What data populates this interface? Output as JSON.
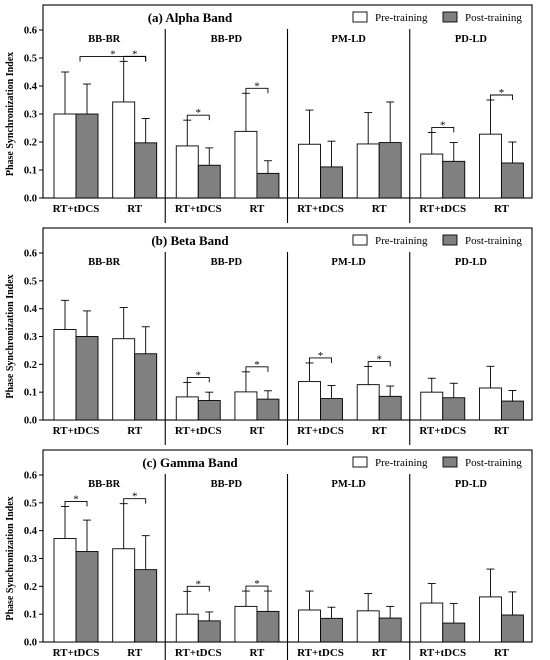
{
  "colors": {
    "pre": "#ffffff",
    "post": "#808080",
    "axis": "#000000"
  },
  "chart_data": [
    {
      "type": "bar",
      "title": "(a) Alpha Band",
      "ylabel": "Phase Synchronization Index",
      "ylim": [
        0,
        0.6
      ],
      "yticks": [
        "0.0",
        "0.1",
        "0.2",
        "0.3",
        "0.4",
        "0.5",
        "0.6"
      ],
      "legend": [
        "Pre-training",
        "Post-training"
      ],
      "legend_position": "top-right",
      "groups": [
        {
          "name": "BB-BR",
          "categories": [
            "RT+tDCS",
            "RT"
          ],
          "pre": [
            0.3,
            0.343
          ],
          "pre_err": [
            0.15,
            0.145
          ],
          "post": [
            0.3,
            0.197
          ],
          "post_err": [
            0.107,
            0.087
          ],
          "sig": [
            {
              "cat": 1,
              "from": "pre",
              "to": "post",
              "label": "*"
            },
            {
              "cat": "0-1",
              "label": "*"
            }
          ]
        },
        {
          "name": "BB-PD",
          "categories": [
            "RT+tDCS",
            "RT"
          ],
          "pre": [
            0.186,
            0.238
          ],
          "pre_err": [
            0.092,
            0.136
          ],
          "post": [
            0.117,
            0.088
          ],
          "post_err": [
            0.062,
            0.045
          ],
          "sig": [
            {
              "cat": 0,
              "from": "pre",
              "to": "post",
              "label": "*"
            },
            {
              "cat": 1,
              "from": "pre",
              "to": "post",
              "label": "*"
            }
          ]
        },
        {
          "name": "PM-LD",
          "categories": [
            "RT+tDCS",
            "RT"
          ],
          "pre": [
            0.192,
            0.193
          ],
          "pre_err": [
            0.122,
            0.112
          ],
          "post": [
            0.111,
            0.198
          ],
          "post_err": [
            0.092,
            0.145
          ],
          "sig": []
        },
        {
          "name": "PD-LD",
          "categories": [
            "RT+tDCS",
            "RT"
          ],
          "pre": [
            0.157,
            0.228
          ],
          "pre_err": [
            0.077,
            0.122
          ],
          "post": [
            0.131,
            0.125
          ],
          "post_err": [
            0.067,
            0.075
          ],
          "sig": [
            {
              "cat": 0,
              "from": "pre",
              "to": "post",
              "label": "*"
            },
            {
              "cat": 1,
              "from": "pre",
              "to": "post",
              "label": "*"
            }
          ]
        }
      ]
    },
    {
      "type": "bar",
      "title": "(b) Beta Band",
      "ylabel": "Phase Synchronization Index",
      "ylim": [
        0,
        0.6
      ],
      "yticks": [
        "0.0",
        "0.1",
        "0.2",
        "0.3",
        "0.4",
        "0.5",
        "0.6"
      ],
      "legend": [
        "Pre-training",
        "Post-training"
      ],
      "legend_position": "top-right",
      "groups": [
        {
          "name": "BB-BR",
          "categories": [
            "RT+tDCS",
            "RT"
          ],
          "pre": [
            0.325,
            0.292
          ],
          "pre_err": [
            0.105,
            0.112
          ],
          "post": [
            0.3,
            0.238
          ],
          "post_err": [
            0.092,
            0.097
          ],
          "sig": []
        },
        {
          "name": "BB-PD",
          "categories": [
            "RT+tDCS",
            "RT"
          ],
          "pre": [
            0.083,
            0.101
          ],
          "pre_err": [
            0.052,
            0.072
          ],
          "post": [
            0.07,
            0.075
          ],
          "post_err": [
            0.03,
            0.03
          ],
          "sig": [
            {
              "cat": 0,
              "from": "pre",
              "to": "post",
              "label": "*"
            },
            {
              "cat": 1,
              "from": "pre",
              "to": "post",
              "label": "*"
            }
          ]
        },
        {
          "name": "PM-LD",
          "categories": [
            "RT+tDCS",
            "RT"
          ],
          "pre": [
            0.138,
            0.127
          ],
          "pre_err": [
            0.067,
            0.065
          ],
          "post": [
            0.077,
            0.085
          ],
          "post_err": [
            0.047,
            0.037
          ],
          "sig": [
            {
              "cat": 0,
              "from": "pre",
              "to": "post",
              "label": "*"
            },
            {
              "cat": 1,
              "from": "pre",
              "to": "post",
              "label": "*"
            }
          ]
        },
        {
          "name": "PD-LD",
          "categories": [
            "RT+tDCS",
            "RT"
          ],
          "pre": [
            0.1,
            0.115
          ],
          "pre_err": [
            0.05,
            0.078
          ],
          "post": [
            0.08,
            0.068
          ],
          "post_err": [
            0.052,
            0.038
          ],
          "sig": []
        }
      ]
    },
    {
      "type": "bar",
      "title": "(c) Gamma Band",
      "ylabel": "Phase Synchronization Index",
      "ylim": [
        0,
        0.6
      ],
      "yticks": [
        "0.0",
        "0.1",
        "0.2",
        "0.3",
        "0.4",
        "0.5",
        "0.6"
      ],
      "legend": [
        "Pre-training",
        "Post-training"
      ],
      "legend_position": "top-right",
      "groups": [
        {
          "name": "BB-BR",
          "categories": [
            "RT+tDCS",
            "RT"
          ],
          "pre": [
            0.372,
            0.335
          ],
          "pre_err": [
            0.115,
            0.162
          ],
          "post": [
            0.325,
            0.26
          ],
          "post_err": [
            0.113,
            0.122
          ],
          "sig": [
            {
              "cat": 0,
              "from": "pre",
              "to": "post",
              "label": "*"
            },
            {
              "cat": 1,
              "from": "pre",
              "to": "post",
              "label": "*"
            }
          ]
        },
        {
          "name": "BB-PD",
          "categories": [
            "RT+tDCS",
            "RT"
          ],
          "pre": [
            0.1,
            0.128
          ],
          "pre_err": [
            0.082,
            0.055
          ],
          "post": [
            0.076,
            0.11
          ],
          "post_err": [
            0.032,
            0.073
          ],
          "sig": [
            {
              "cat": 0,
              "from": "pre",
              "to": "post",
              "label": "*"
            },
            {
              "cat": 1,
              "from": "pre",
              "to": "post",
              "label": "*"
            }
          ]
        },
        {
          "name": "PM-LD",
          "categories": [
            "RT+tDCS",
            "RT"
          ],
          "pre": [
            0.115,
            0.112
          ],
          "pre_err": [
            0.068,
            0.062
          ],
          "post": [
            0.085,
            0.086
          ],
          "post_err": [
            0.04,
            0.042
          ],
          "sig": []
        },
        {
          "name": "PD-LD",
          "categories": [
            "RT+tDCS",
            "RT"
          ],
          "pre": [
            0.14,
            0.162
          ],
          "pre_err": [
            0.07,
            0.1
          ],
          "post": [
            0.068,
            0.097
          ],
          "post_err": [
            0.07,
            0.083
          ],
          "sig": []
        }
      ]
    }
  ]
}
